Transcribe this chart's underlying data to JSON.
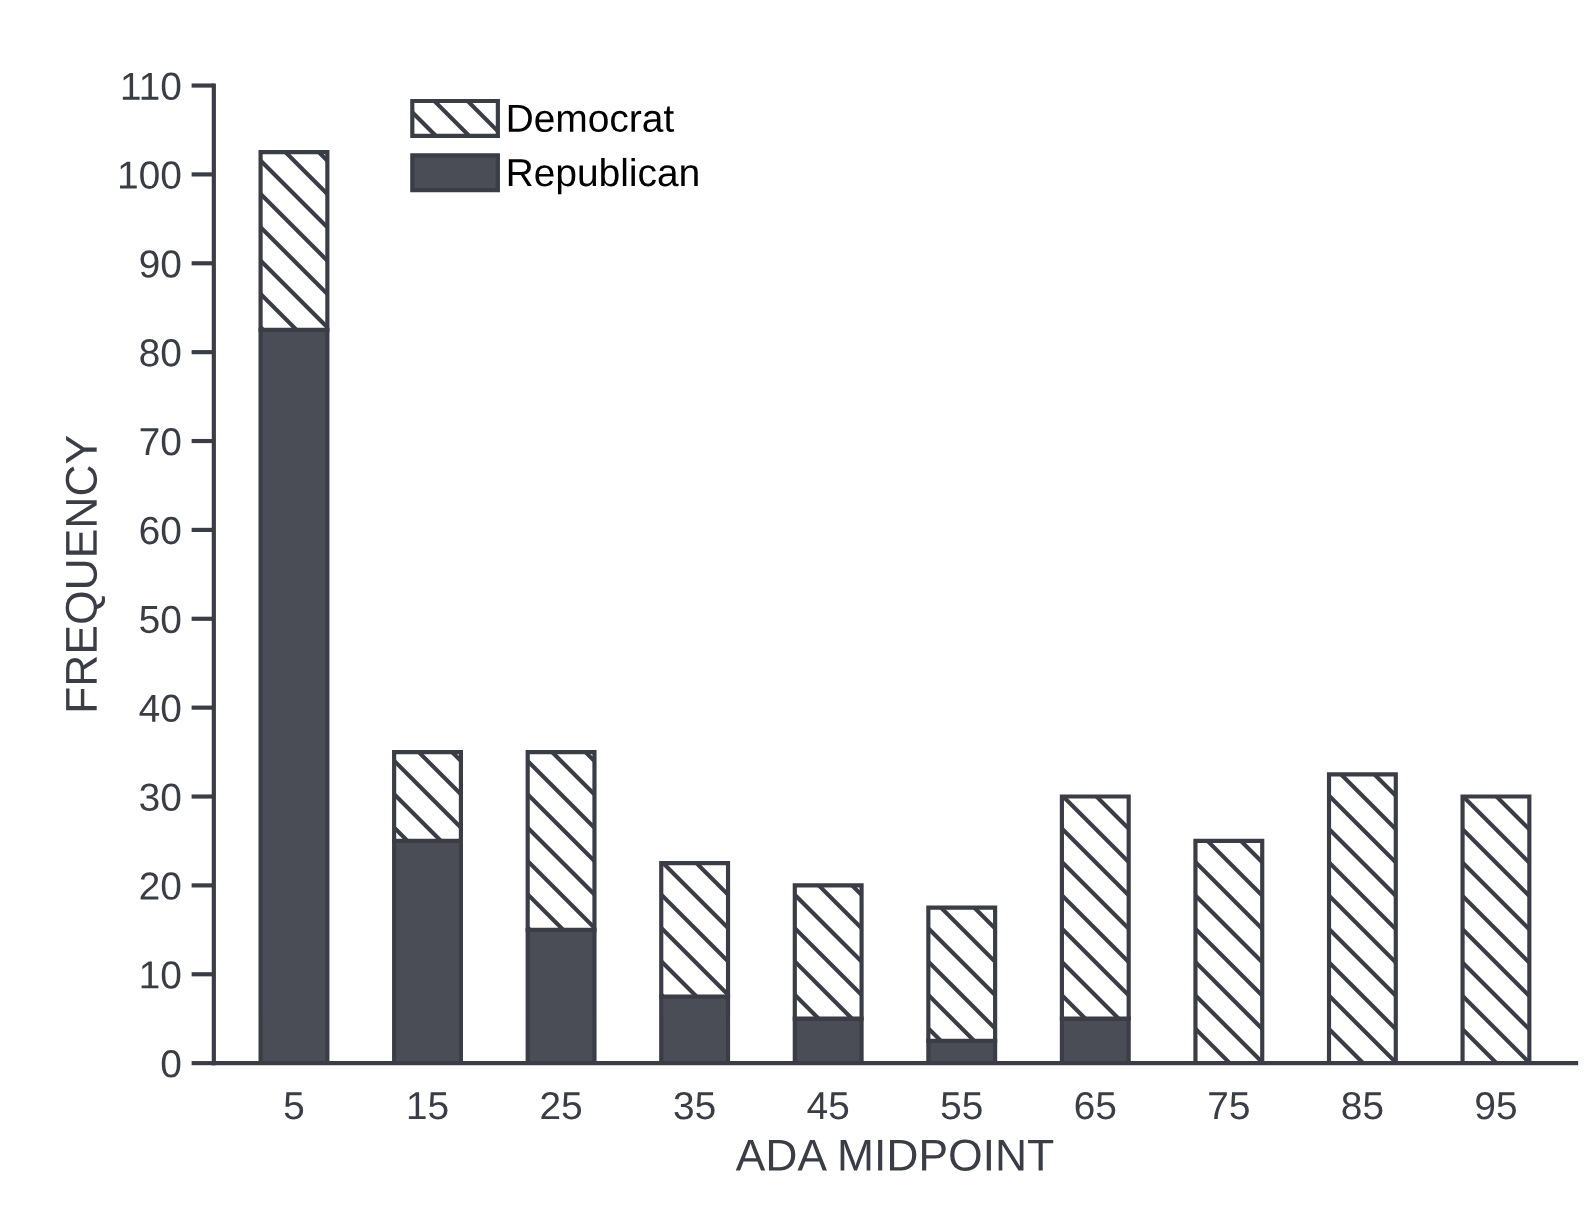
{
  "chart_data": {
    "type": "bar",
    "stacked": true,
    "xlabel": "ADA MIDPOINT",
    "ylabel": "FREQUENCY",
    "categories": [
      "5",
      "15",
      "25",
      "35",
      "45",
      "55",
      "65",
      "75",
      "85",
      "95"
    ],
    "series": [
      {
        "name": "Republican",
        "color": "#4a4d55",
        "values": [
          82.5,
          25,
          15,
          7.5,
          5,
          2.5,
          5,
          0,
          0,
          0
        ]
      },
      {
        "name": "Democrat",
        "color": "#3a3d45",
        "values": [
          20,
          10,
          20,
          15,
          15,
          15,
          25,
          25,
          32.5,
          30
        ]
      }
    ],
    "ylim": [
      0,
      110
    ],
    "yticks": [
      0,
      10,
      20,
      30,
      40,
      50,
      60,
      70,
      80,
      90,
      100,
      110
    ],
    "grid": false,
    "legend": "top left"
  }
}
